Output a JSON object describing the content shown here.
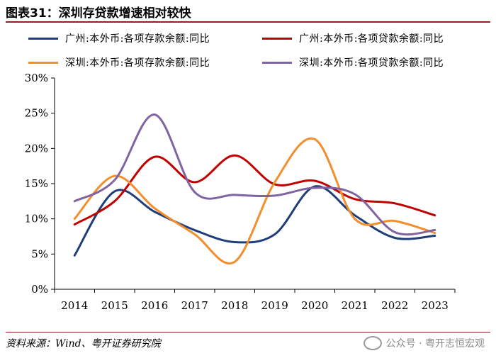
{
  "header": {
    "title": "图表31：深圳存贷款增速相对较快"
  },
  "legend": {
    "items": [
      {
        "label": "广州:本外币:各项存款余额:同比",
        "color": "#1f3d7a"
      },
      {
        "label": "广州:本外币:各项贷款余额:同比",
        "color": "#c00000"
      },
      {
        "label": "深圳:本外币:各项存款余额:同比",
        "color": "#f28e2b"
      },
      {
        "label": "深圳:本外币:各项贷款余额:同比",
        "color": "#8064a2"
      }
    ]
  },
  "chart_data": {
    "type": "line",
    "title": "图表31：深圳存贷款增速相对较快",
    "xlabel": "",
    "ylabel": "",
    "categories": [
      "2014",
      "2015",
      "2016",
      "2017",
      "2018",
      "2019",
      "2020",
      "2021",
      "2022",
      "2023"
    ],
    "y_ticks": [
      "0%",
      "5%",
      "10%",
      "15%",
      "20%",
      "25%",
      "30%"
    ],
    "ylim": [
      0,
      30
    ],
    "grid": false,
    "smooth": true,
    "legend_position": "top",
    "series": [
      {
        "name": "广州:本外币:各项存款余额:同比",
        "color": "#1f3d7a",
        "values": [
          4.8,
          13.9,
          11.0,
          8.4,
          6.7,
          7.8,
          14.6,
          10.5,
          7.3,
          7.6
        ]
      },
      {
        "name": "广州:本外币:各项贷款余额:同比",
        "color": "#c00000",
        "values": [
          9.2,
          12.5,
          18.8,
          15.2,
          19.0,
          14.9,
          15.4,
          12.8,
          12.2,
          10.5
        ]
      },
      {
        "name": "深圳:本外币:各项存款余额:同比",
        "color": "#f28e2b",
        "values": [
          10.0,
          16.1,
          11.5,
          7.8,
          3.9,
          15.2,
          21.3,
          10.0,
          9.7,
          8.0
        ]
      },
      {
        "name": "深圳:本外币:各项贷款余额:同比",
        "color": "#8064a2",
        "values": [
          12.5,
          15.5,
          24.8,
          13.8,
          13.4,
          13.3,
          14.4,
          13.5,
          8.1,
          8.4
        ]
      }
    ]
  },
  "footer": {
    "source": "资料来源：Wind、粤开证券研究院",
    "watermark": "公众号 · 粤开志恒宏观"
  }
}
